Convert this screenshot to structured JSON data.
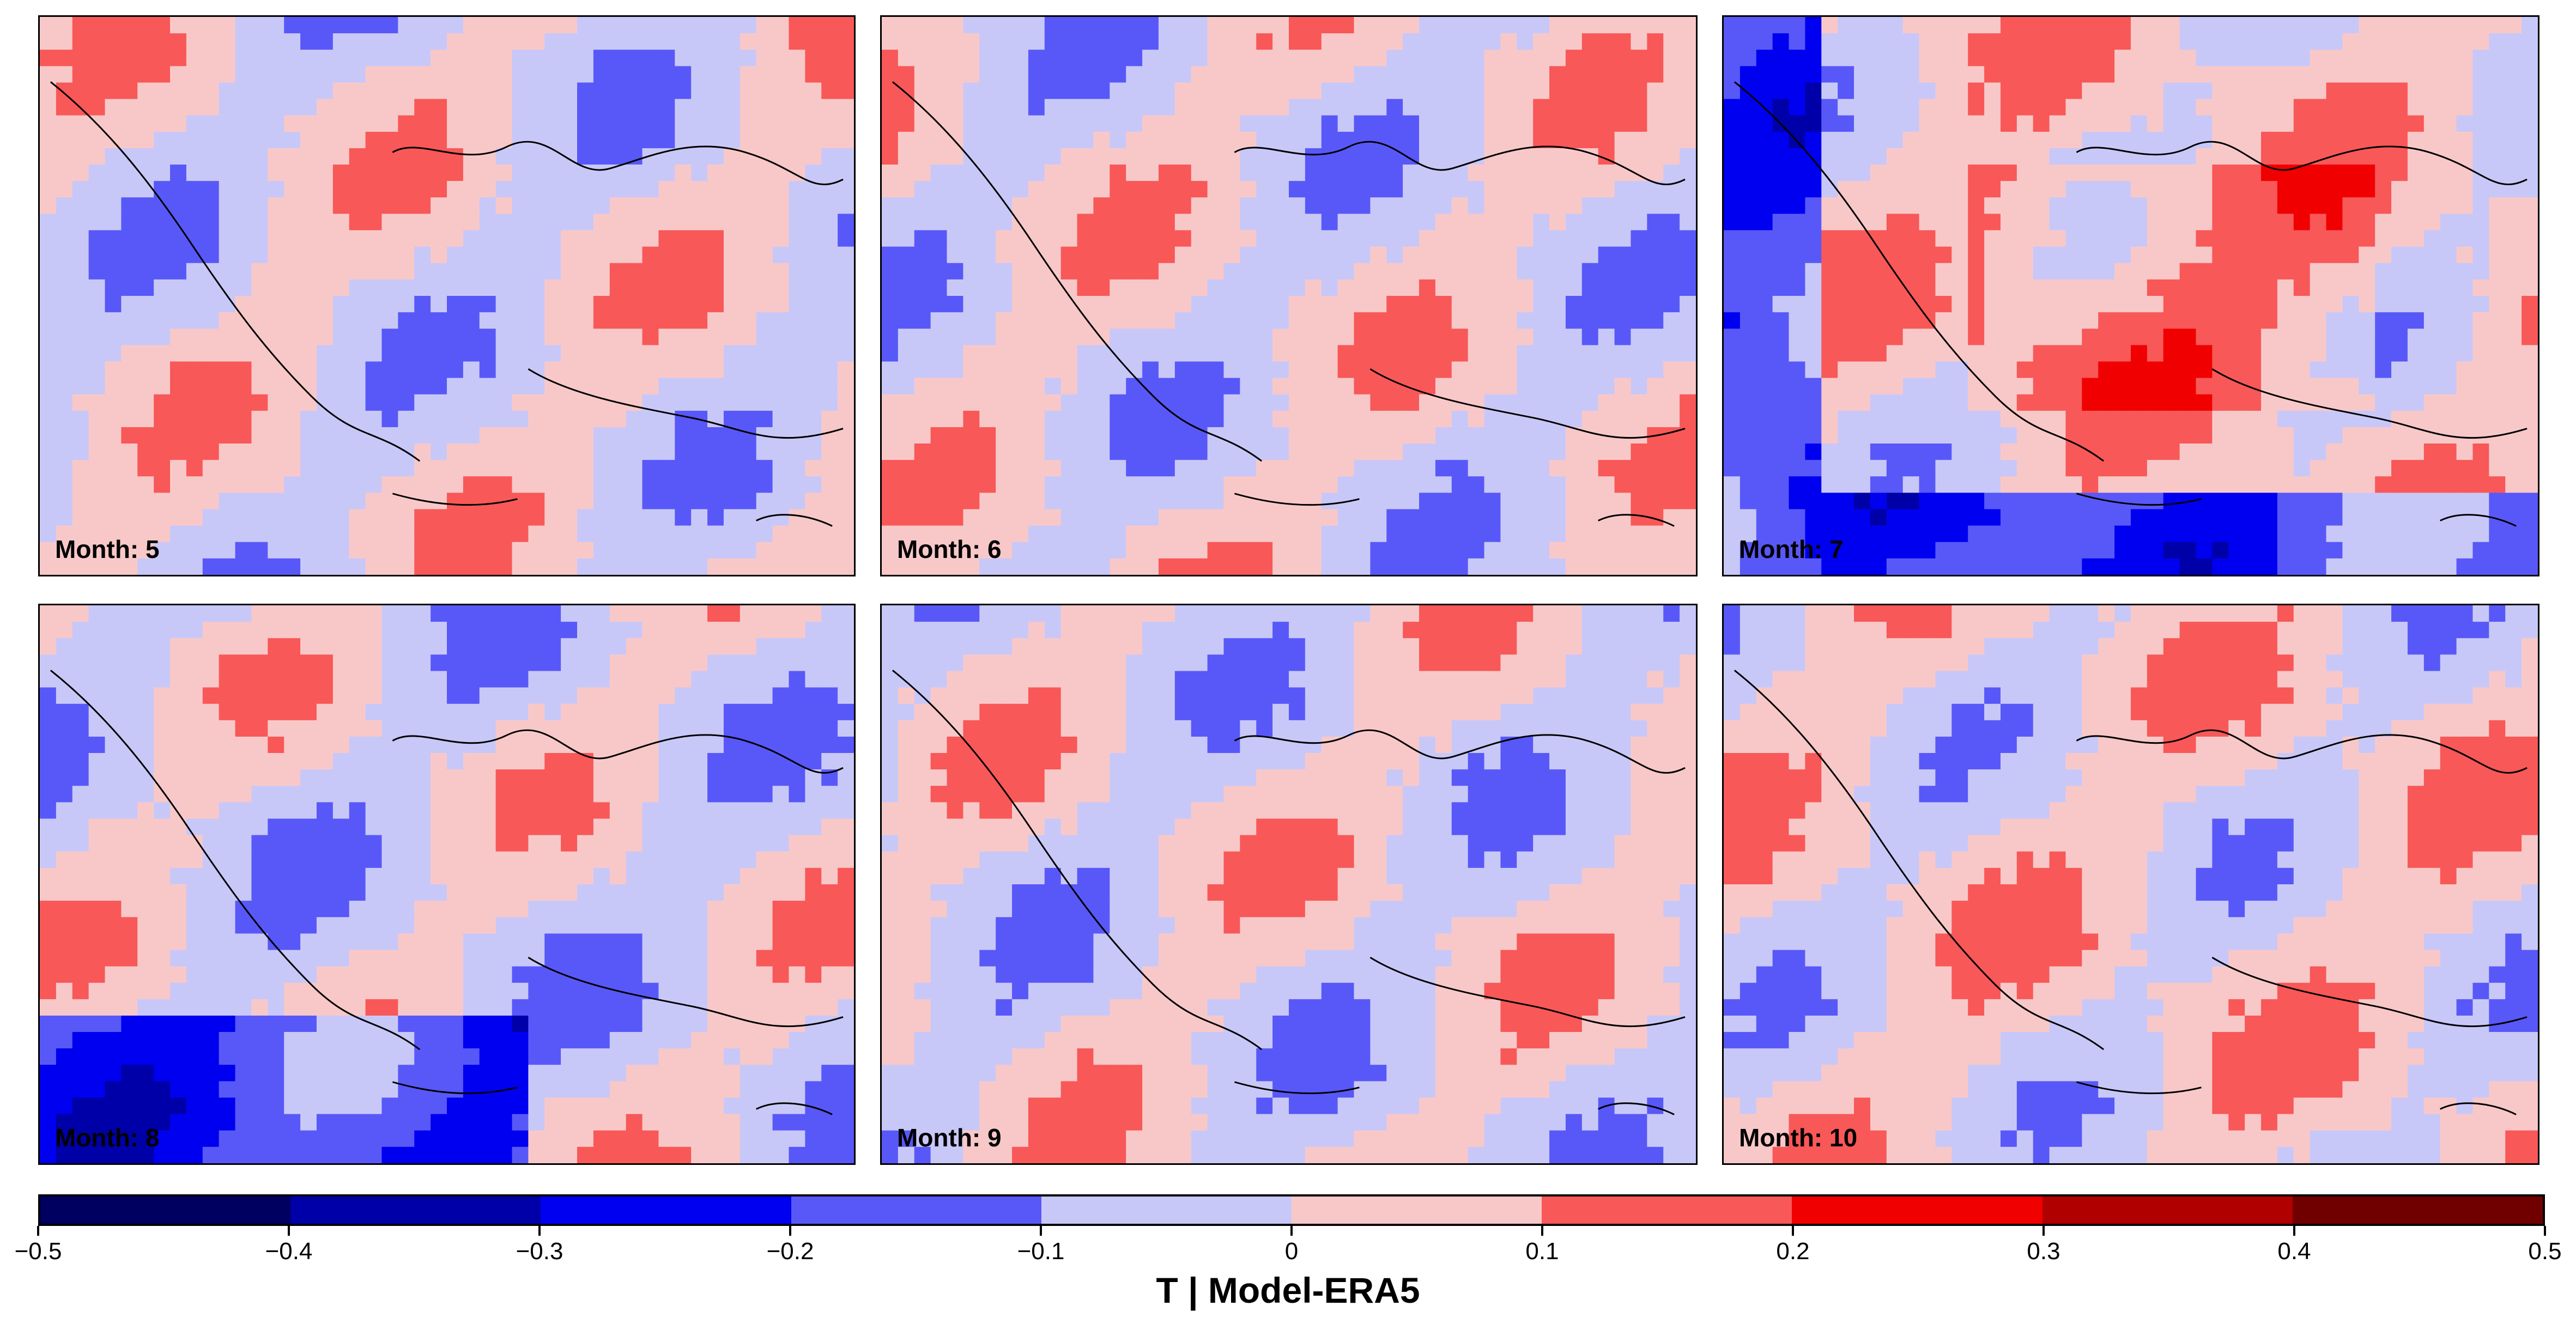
{
  "figure": {
    "colorbar_title": "T | Model-ERA5"
  },
  "panels": [
    {
      "label": "Month: 5",
      "pattern": "mixed"
    },
    {
      "label": "Month: 6",
      "pattern": "mixed"
    },
    {
      "label": "Month: 7",
      "pattern": "warm"
    },
    {
      "label": "Month: 8",
      "pattern": "cool-south"
    },
    {
      "label": "Month: 9",
      "pattern": "banded"
    },
    {
      "label": "Month: 10",
      "pattern": "warm-light"
    }
  ],
  "colorbar": {
    "ticks": [
      "−0.5",
      "−0.4",
      "−0.3",
      "−0.2",
      "−0.1",
      "0",
      "0.1",
      "0.2",
      "0.3",
      "0.4",
      "0.5"
    ],
    "bins": [
      {
        "range": [
          -0.5,
          -0.4
        ],
        "color": "#000060"
      },
      {
        "range": [
          -0.4,
          -0.3
        ],
        "color": "#0000a8"
      },
      {
        "range": [
          -0.3,
          -0.2
        ],
        "color": "#0000f0"
      },
      {
        "range": [
          -0.2,
          -0.1
        ],
        "color": "#5858f8"
      },
      {
        "range": [
          -0.1,
          0.0
        ],
        "color": "#c8c8f8"
      },
      {
        "range": [
          0.0,
          0.1
        ],
        "color": "#f8c8c8"
      },
      {
        "range": [
          0.1,
          0.2
        ],
        "color": "#f85858"
      },
      {
        "range": [
          0.2,
          0.3
        ],
        "color": "#f00000"
      },
      {
        "range": [
          0.3,
          0.4
        ],
        "color": "#b00000"
      },
      {
        "range": [
          0.4,
          0.5
        ],
        "color": "#700000"
      }
    ]
  }
}
